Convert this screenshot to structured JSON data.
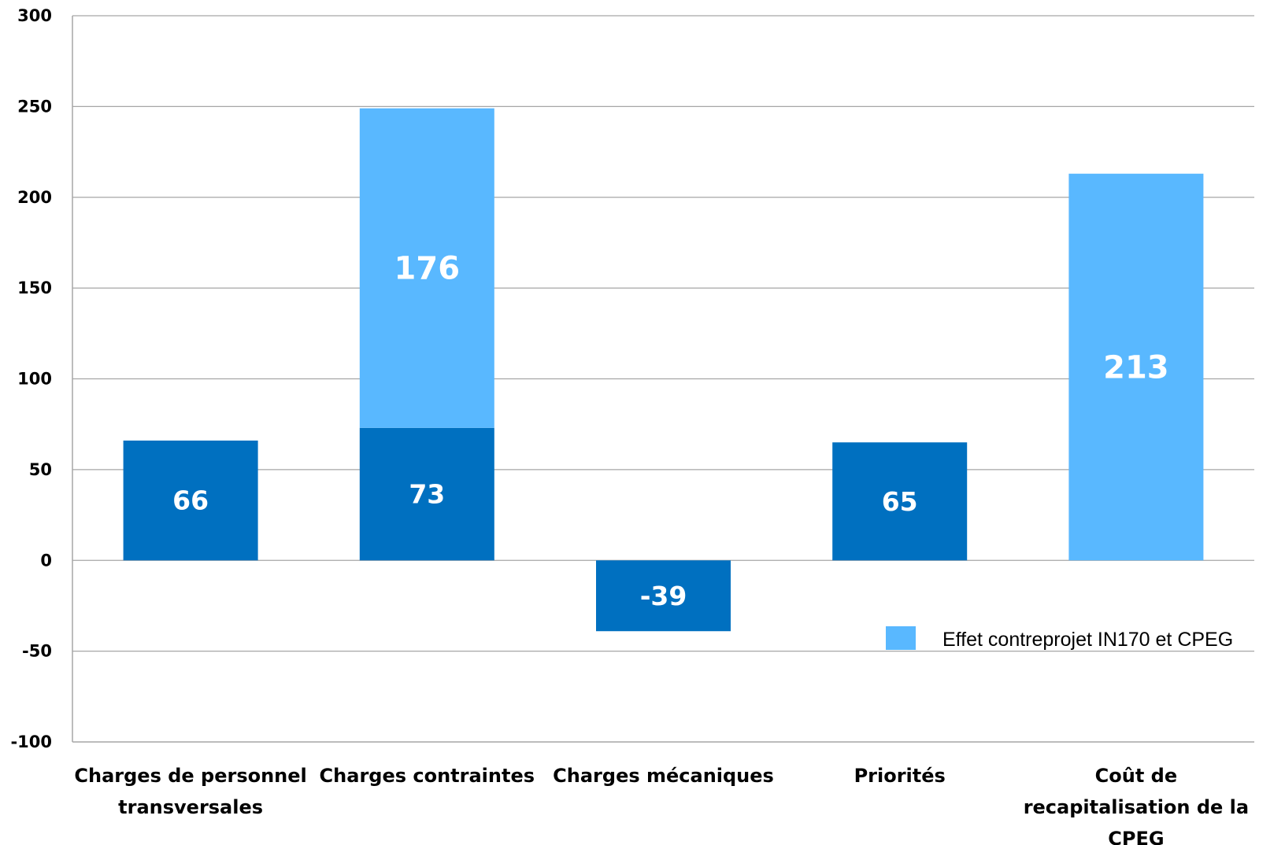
{
  "chart_data": {
    "type": "bar",
    "stacked": true,
    "categories": [
      [
        "Charges de personnel",
        "transversales"
      ],
      [
        "Charges contraintes"
      ],
      [
        "Charges mécaniques"
      ],
      [
        "Priorités"
      ],
      [
        "Coût de",
        "recapitalisation de la",
        "CPEG"
      ]
    ],
    "series": [
      {
        "name": "",
        "color": "#0070C0",
        "values": [
          66,
          73,
          -39,
          65,
          0
        ],
        "labels": [
          "66",
          "73",
          "-39",
          "65",
          ""
        ]
      },
      {
        "name": "Effet contreprojet IN170 et CPEG",
        "color": "#59B8FF",
        "values": [
          0,
          176,
          0,
          0,
          213
        ],
        "labels": [
          "",
          "176",
          "",
          "",
          "213"
        ]
      }
    ],
    "ylim": [
      -100,
      300
    ],
    "yticks": [
      300,
      250,
      200,
      150,
      100,
      50,
      0,
      -50,
      -100
    ],
    "grid": true,
    "legend_position": "right",
    "gridline_color": "#A6A6A6",
    "axis_color": "#A6A6A6"
  }
}
